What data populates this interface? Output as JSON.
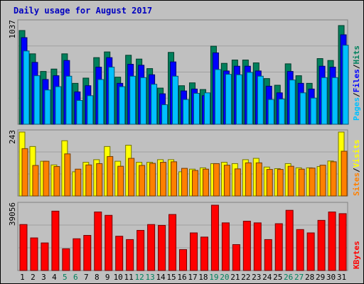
{
  "title": "Daily usage for August 2017",
  "colors": {
    "hits": "#00805c",
    "files": "#0000ff",
    "pages": "#00c0ff",
    "visits": "#ffff00",
    "sites": "#ff8000",
    "kbytes": "#ff0000",
    "weekend_day_label": "#00805c",
    "weekday_label": "#000000",
    "background": "#c0c0c0"
  },
  "chart_data": [
    {
      "type": "bar",
      "panel": "hits-files-pages",
      "x": [
        1,
        2,
        3,
        4,
        5,
        6,
        7,
        8,
        9,
        10,
        11,
        12,
        13,
        14,
        15,
        16,
        17,
        18,
        19,
        20,
        21,
        22,
        23,
        24,
        25,
        26,
        27,
        28,
        29,
        30,
        31
      ],
      "weekend_days": [
        5,
        6,
        12,
        13,
        19,
        20,
        26,
        27
      ],
      "ymax_label": "1037",
      "ylim": [
        0,
        1037
      ],
      "legend": [
        "Pages",
        "Files",
        "Hits"
      ],
      "series": [
        {
          "name": "Hits",
          "values": [
            985,
            740,
            555,
            580,
            740,
            430,
            485,
            700,
            760,
            495,
            725,
            685,
            585,
            380,
            755,
            405,
            435,
            365,
            820,
            640,
            675,
            675,
            645,
            480,
            410,
            635,
            510,
            430,
            690,
            670,
            1037
          ]
        },
        {
          "name": "Files",
          "values": [
            910,
            650,
            470,
            510,
            670,
            340,
            405,
            600,
            700,
            430,
            630,
            620,
            520,
            320,
            655,
            350,
            370,
            300,
            750,
            560,
            610,
            610,
            560,
            400,
            330,
            555,
            430,
            370,
            610,
            600,
            940
          ]
        },
        {
          "name": "Pages",
          "values": [
            770,
            510,
            360,
            395,
            505,
            250,
            300,
            470,
            600,
            395,
            505,
            490,
            420,
            205,
            505,
            260,
            325,
            330,
            575,
            525,
            520,
            545,
            505,
            260,
            265,
            465,
            330,
            275,
            490,
            490,
            830
          ]
        }
      ]
    },
    {
      "type": "bar",
      "panel": "visits-sites",
      "x": [
        1,
        2,
        3,
        4,
        5,
        6,
        7,
        8,
        9,
        10,
        11,
        12,
        13,
        14,
        15,
        16,
        17,
        18,
        19,
        20,
        21,
        22,
        23,
        24,
        25,
        26,
        27,
        28,
        29,
        30,
        31
      ],
      "ymax_label": "243",
      "ylim": [
        0,
        243
      ],
      "legend": [
        "Sites",
        "Visits"
      ],
      "series": [
        {
          "name": "Visits",
          "values": [
            243,
            188,
            132,
            118,
            210,
            92,
            128,
            138,
            188,
            132,
            193,
            128,
            128,
            138,
            138,
            92,
            102,
            107,
            123,
            128,
            123,
            138,
            143,
            110,
            104,
            123,
            107,
            107,
            112,
            133,
            243
          ]
        },
        {
          "name": "Sites",
          "values": [
            180,
            116,
            132,
            112,
            160,
            102,
            118,
            123,
            150,
            113,
            143,
            116,
            124,
            128,
            130,
            105,
            97,
            102,
            123,
            117,
            103,
            126,
            126,
            101,
            101,
            113,
            102,
            106,
            117,
            130,
            170
          ]
        }
      ]
    },
    {
      "type": "bar",
      "panel": "kbytes",
      "x": [
        1,
        2,
        3,
        4,
        5,
        6,
        7,
        8,
        9,
        10,
        11,
        12,
        13,
        14,
        15,
        16,
        17,
        18,
        19,
        20,
        21,
        22,
        23,
        24,
        25,
        26,
        27,
        28,
        29,
        30,
        31
      ],
      "ymax_label": "39056",
      "ylim": [
        0,
        39056
      ],
      "legend": [
        "KBytes"
      ],
      "series": [
        {
          "name": "KBytes",
          "values": [
            27500,
            19500,
            16500,
            35500,
            13000,
            19000,
            21000,
            35000,
            33000,
            20500,
            18500,
            24000,
            27500,
            27000,
            33500,
            12500,
            22500,
            20000,
            39056,
            28500,
            15500,
            29500,
            28500,
            18500,
            28000,
            36000,
            24500,
            22500,
            30000,
            35000,
            34000
          ]
        }
      ]
    }
  ]
}
